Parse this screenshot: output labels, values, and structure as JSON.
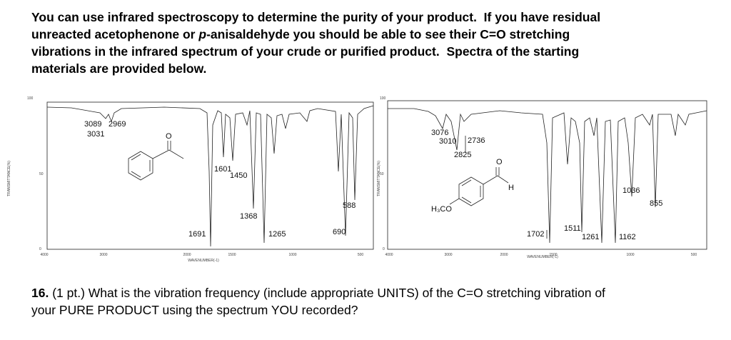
{
  "intro": {
    "line1": "You can use infrared spectroscopy to determine the purity of your product.  If you have residual",
    "line2a": "unreacted acetophenone or ",
    "line2b": "p",
    "line2c": "-anisaldehyde you should be able to see their C=O stretching",
    "line3": "vibrations in the infrared spectrum of your crude or purified product.  Spectra of the starting",
    "line4": "materials are provided below."
  },
  "spectra": [
    {
      "y_label": "TRANSMITTANCE(%)",
      "x_label": "WAVENUMBER(-1)",
      "y_ticks": [
        "100",
        "50",
        "0"
      ],
      "x_ticks": [
        "4000",
        "3000",
        "2000",
        "1500",
        "1000",
        "500"
      ],
      "peaks": [
        "3089",
        "2969",
        "3031",
        "1601",
        "1450",
        "1368",
        "1691",
        "1265",
        "690",
        "588"
      ],
      "structure": [
        "O"
      ]
    },
    {
      "y_label": "TRANSMITTANCE(%)",
      "x_label": "WAVENUMBER(-1)",
      "y_ticks": [
        "100",
        "50",
        "0"
      ],
      "x_ticks": [
        "4000",
        "3000",
        "2000",
        "1500",
        "1000",
        "500"
      ],
      "peaks": [
        "3076",
        "2736",
        "3010",
        "2825",
        "1036",
        "855",
        "1511",
        "1702",
        "1261",
        "1162"
      ],
      "structure": [
        "O",
        "H",
        "H₃CO"
      ]
    }
  ],
  "question": {
    "number": "16.",
    "line1": " (1 pt.) What is the vibration frequency (include appropriate UNITS) of the C=O stretching vibration of",
    "line2": "your PURE PRODUCT using the spectrum YOU recorded?"
  }
}
